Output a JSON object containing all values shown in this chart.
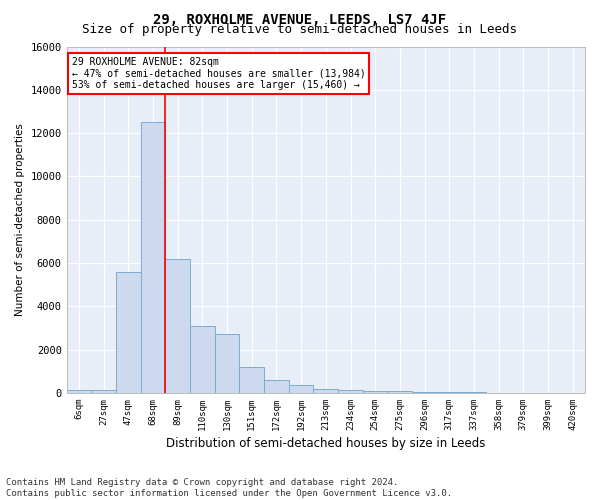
{
  "title": "29, ROXHOLME AVENUE, LEEDS, LS7 4JF",
  "subtitle": "Size of property relative to semi-detached houses in Leeds",
  "xlabel": "Distribution of semi-detached houses by size in Leeds",
  "ylabel": "Number of semi-detached properties",
  "footer": "Contains HM Land Registry data © Crown copyright and database right 2024.\nContains public sector information licensed under the Open Government Licence v3.0.",
  "bin_labels": [
    "6sqm",
    "27sqm",
    "47sqm",
    "68sqm",
    "89sqm",
    "110sqm",
    "130sqm",
    "151sqm",
    "172sqm",
    "192sqm",
    "213sqm",
    "234sqm",
    "254sqm",
    "275sqm",
    "296sqm",
    "317sqm",
    "337sqm",
    "358sqm",
    "379sqm",
    "399sqm",
    "420sqm"
  ],
  "bar_heights": [
    150,
    150,
    5600,
    12500,
    6200,
    3100,
    2700,
    1200,
    600,
    350,
    200,
    150,
    100,
    80,
    60,
    40,
    30,
    20,
    10,
    5,
    5
  ],
  "bar_color": "#ccd9ee",
  "bar_edge_color": "#7aadd4",
  "annotation_title": "29 ROXHOLME AVENUE: 82sqm",
  "annotation_line1": "← 47% of semi-detached houses are smaller (13,984)",
  "annotation_line2": "53% of semi-detached houses are larger (15,460) →",
  "red_line_bin": 4,
  "ylim": [
    0,
    16000
  ],
  "yticks": [
    0,
    2000,
    4000,
    6000,
    8000,
    10000,
    12000,
    14000,
    16000
  ],
  "plot_bg_color": "#e8eef8",
  "grid_color": "#ffffff",
  "title_fontsize": 10,
  "subtitle_fontsize": 9,
  "footer_fontsize": 6.5
}
